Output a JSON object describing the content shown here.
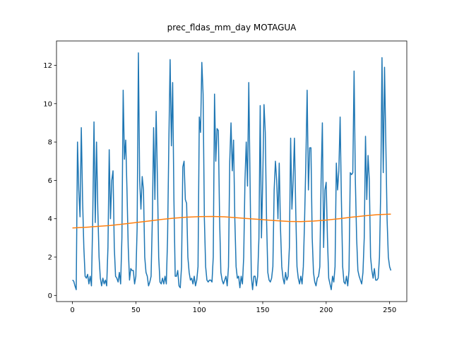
{
  "chart_data": {
    "type": "line",
    "title": "prec_fldas_mm_day MOTAGUA",
    "xlim": [
      -12.55,
      263.55
    ],
    "xticks": [
      0,
      50,
      100,
      150,
      200,
      250
    ],
    "ylim": [
      -0.32,
      13.27
    ],
    "yticks": [
      0,
      2,
      4,
      6,
      8,
      10,
      12
    ],
    "series": [
      {
        "color": "#1f77b4",
        "values": [
          0.8,
          0.75,
          0.5,
          0.3,
          8.0,
          5.5,
          4.1,
          8.75,
          5.0,
          2.5,
          1.0,
          0.9,
          1.1,
          0.6,
          1.0,
          0.5,
          4.0,
          9.05,
          3.8,
          8.0,
          4.5,
          2.0,
          0.9,
          0.5,
          0.9,
          0.6,
          0.8,
          0.5,
          2.5,
          7.6,
          4.0,
          6.0,
          6.5,
          2.5,
          1.0,
          0.9,
          0.7,
          1.2,
          0.6,
          3.0,
          10.7,
          7.1,
          8.1,
          5.5,
          2.5,
          0.8,
          1.4,
          1.3,
          1.3,
          0.6,
          1.0,
          3.5,
          12.65,
          6.0,
          4.5,
          6.2,
          5.5,
          2.0,
          1.2,
          1.0,
          0.5,
          0.7,
          1.0,
          4.0,
          8.75,
          5.0,
          9.6,
          6.0,
          2.0,
          0.7,
          0.6,
          0.9,
          0.6,
          1.0,
          0.6,
          3.0,
          8.0,
          12.3,
          7.8,
          11.1,
          5.0,
          1.0,
          1.0,
          1.3,
          0.5,
          0.4,
          1.5,
          6.7,
          7.0,
          5.0,
          4.8,
          2.0,
          1.2,
          0.8,
          0.9,
          0.6,
          1.0,
          0.5,
          0.8,
          1.5,
          9.3,
          8.5,
          12.15,
          10.5,
          4.0,
          1.5,
          0.8,
          0.7,
          0.8,
          0.8,
          0.7,
          2.0,
          10.5,
          7.0,
          8.7,
          8.6,
          4.0,
          1.2,
          0.8,
          0.6,
          0.8,
          1.0,
          0.5,
          1.5,
          7.0,
          9.0,
          6.5,
          8.1,
          4.0,
          1.5,
          0.9,
          1.0,
          0.4,
          1.0,
          0.6,
          2.0,
          6.0,
          8.0,
          5.7,
          11.1,
          6.0,
          1.0,
          0.3,
          1.0,
          1.0,
          0.5,
          1.0,
          3.0,
          9.9,
          3.0,
          6.0,
          9.95,
          8.5,
          4.0,
          1.2,
          0.8,
          0.7,
          0.9,
          1.5,
          5.5,
          7.0,
          6.0,
          4.0,
          6.9,
          3.5,
          1.5,
          0.9,
          0.6,
          1.2,
          0.8,
          1.0,
          2.5,
          8.2,
          4.5,
          6.0,
          8.2,
          4.5,
          1.5,
          0.9,
          0.6,
          1.0,
          0.6,
          1.5,
          4.0,
          7.0,
          10.7,
          5.5,
          7.7,
          7.7,
          3.0,
          1.2,
          0.7,
          0.5,
          0.9,
          1.0,
          1.5,
          6.0,
          9.0,
          2.5,
          5.5,
          5.9,
          3.0,
          0.9,
          0.6,
          0.3,
          1.0,
          0.7,
          1.5,
          6.9,
          5.5,
          6.5,
          9.3,
          5.0,
          1.5,
          0.7,
          0.6,
          1.0,
          0.5,
          1.3,
          6.4,
          6.3,
          6.4,
          11.7,
          6.0,
          3.0,
          1.3,
          1.0,
          0.8,
          0.6,
          1.2,
          3.0,
          8.3,
          5.0,
          7.3,
          6.0,
          2.0,
          1.3,
          0.9,
          1.4,
          0.8,
          0.8,
          0.9,
          2.0,
          5.5,
          12.4,
          6.4,
          11.9,
          8.0,
          4.0,
          2.0,
          1.5,
          1.3
        ]
      },
      {
        "color": "#ff7f0e",
        "x": [
          0,
          10,
          20,
          30,
          40,
          50,
          60,
          70,
          80,
          90,
          100,
          110,
          120,
          130,
          140,
          150,
          160,
          170,
          180,
          190,
          200,
          210,
          220,
          230,
          240,
          250,
          251
        ],
        "values": [
          3.52,
          3.55,
          3.6,
          3.65,
          3.72,
          3.8,
          3.88,
          3.96,
          4.03,
          4.08,
          4.11,
          4.12,
          4.1,
          4.05,
          4.0,
          3.95,
          3.9,
          3.86,
          3.85,
          3.88,
          3.93,
          4.0,
          4.08,
          4.15,
          4.21,
          4.24,
          4.24
        ]
      }
    ]
  }
}
